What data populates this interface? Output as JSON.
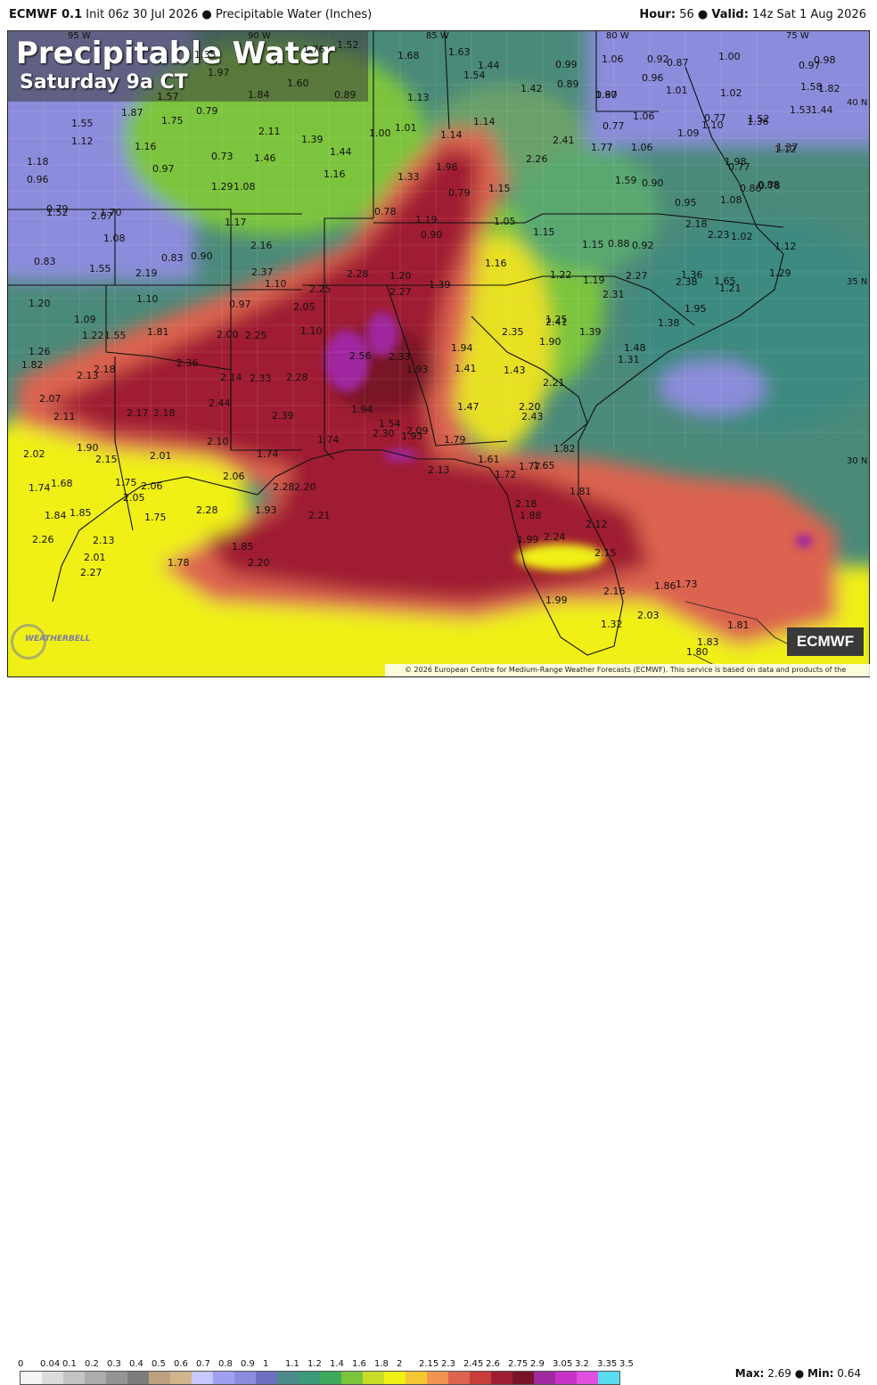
{
  "header": {
    "model": "ECMWF 0.1",
    "init": "Init 06z 30 Jul 2026",
    "product": "Precipitable Water (Inches)",
    "hour_label": "Hour:",
    "hour": "56",
    "valid_label": "Valid:",
    "valid": "14z Sat 1 Aug 2026"
  },
  "title": {
    "main": "Precipitable Water",
    "sub": "Saturday 9a CT"
  },
  "badge": "ECMWF",
  "copyright": "© 2026 European Centre for Medium-Range Weather Forecasts (ECMWF). This service is based on data and products of the ECMWF.",
  "logo_text": "WEATHERBELL",
  "legend": {
    "ticks": [
      "0",
      "0.04",
      "0.1",
      "0.2",
      "0.3",
      "0.4",
      "0.5",
      "0.6",
      "0.7",
      "0.8",
      "0.9",
      "1",
      "1.1",
      "1.2",
      "1.4",
      "1.6",
      "1.8",
      "2",
      "2.15",
      "2.3",
      "2.45",
      "2.6",
      "2.75",
      "2.9",
      "3.05",
      "3.2",
      "3.35",
      "3.5"
    ],
    "colors": [
      "#f4f4f4",
      "#dcdcdc",
      "#c4c4c4",
      "#acacac",
      "#949494",
      "#7c7c7c",
      "#bca080",
      "#d2b48c",
      "#c8c8ff",
      "#a0a0f0",
      "#8c8cdc",
      "#6e6ebe",
      "#4a8a8a",
      "#3c9a78",
      "#3caa5a",
      "#7cc43c",
      "#c8dc28",
      "#f0f014",
      "#f4c832",
      "#f09650",
      "#dc6450",
      "#c83c3c",
      "#a01e32",
      "#781428",
      "#a028a0",
      "#c832c8",
      "#e050e0",
      "#5adcf0"
    ],
    "max_label": "Max:",
    "max": "2.69",
    "min_label": "Min:",
    "min": "0.64"
  },
  "coords": {
    "lon95": "95 W",
    "lon90": "90 W",
    "lon85": "85 W",
    "lon80": "80 W",
    "lon75": "75 W",
    "lat40": "40 N",
    "lat35": "35 N",
    "lat30": "30 N"
  },
  "values": [
    "1.35",
    "1.76",
    "1.52",
    "1.68",
    "1.63",
    "1.44",
    "0.99",
    "1.06",
    "0.92",
    "0.87",
    "1.00",
    "0.97",
    "0.98",
    "1.97",
    "1.60",
    "1.54",
    "1.42",
    "0.89",
    "0.97",
    "0.96",
    "1.01",
    "1.02",
    "1.58",
    "1.82",
    "1.57",
    "1.84",
    "0.89",
    "1.13",
    "1.80",
    "1.87",
    "0.79",
    "1.14",
    "1.06",
    "0.77",
    "1.52",
    "1.53",
    "1.44",
    "1.55",
    "1.75",
    "2.11",
    "1.39",
    "1.00",
    "1.01",
    "1.14",
    "0.77",
    "1.10",
    "1.36",
    "1.37",
    "1.12",
    "1.16",
    "0.73",
    "1.46",
    "1.44",
    "2.41",
    "1.77",
    "1.06",
    "1.09",
    "0.77",
    "1.12",
    "1.18",
    "1.29",
    "1.33",
    "1.98",
    "2.26",
    "1.98",
    "0.88",
    "0.96",
    "0.97",
    "1.08",
    "1.16",
    "0.79",
    "1.15",
    "1.59",
    "0.90",
    "0.95",
    "1.08",
    "0.86",
    "0.78",
    "0.79",
    "1.52",
    "2.07",
    "1.70",
    "1.08",
    "0.78",
    "0.90",
    "1.05",
    "2.18",
    "2.23",
    "1.02",
    "1.12",
    "0.83",
    "0.83",
    "0.90",
    "1.17",
    "2.16",
    "1.19",
    "1.15",
    "1.15",
    "0.88",
    "0.92",
    "1.55",
    "2.19",
    "2.37",
    "2.28",
    "1.20",
    "1.39",
    "1.16",
    "1.22",
    "1.19",
    "2.27",
    "2.38",
    "1.36",
    "1.29",
    "1.20",
    "1.10",
    "0.97",
    "1.10",
    "2.05",
    "2.25",
    "2.27",
    "2.31",
    "1.95",
    "1.65",
    "1.21",
    "1.09",
    "1.10",
    "1.25",
    "2.41",
    "1.38",
    "1.22",
    "1.55",
    "1.81",
    "2.00",
    "2.25",
    "2.35",
    "1.39",
    "1.26",
    "1.94",
    "1.90",
    "1.48",
    "1.82",
    "2.36",
    "2.56",
    "2.33",
    "1.31",
    "2.13",
    "2.18",
    "2.14",
    "2.33",
    "2.28",
    "1.93",
    "1.41",
    "1.43",
    "2.21",
    "2.07",
    "2.44",
    "1.94",
    "1.47",
    "2.20",
    "2.11",
    "2.17",
    "2.18",
    "2.39",
    "1.54",
    "2.43",
    "2.30",
    "1.93",
    "2.09",
    "2.10",
    "1.74",
    "1.79",
    "2.02",
    "1.90",
    "1.74",
    "1.82",
    "2.15",
    "2.01",
    "1.61",
    "1.65",
    "1.74",
    "1.68",
    "1.75",
    "2.06",
    "2.06",
    "2.28",
    "2.20",
    "2.13",
    "1.72",
    "1.77",
    "1.81",
    "1.84",
    "1.85",
    "2.05",
    "2.28",
    "1.93",
    "2.21",
    "2.18",
    "1.75",
    "1.88",
    "2.12",
    "2.26",
    "2.13",
    "1.85",
    "1.99",
    "2.24",
    "2.01",
    "1.78",
    "2.20",
    "2.15",
    "2.27",
    "2.16",
    "1.86",
    "1.73",
    "1.99",
    "2.03",
    "1.32",
    "1.81",
    "1.83",
    "1.80"
  ]
}
